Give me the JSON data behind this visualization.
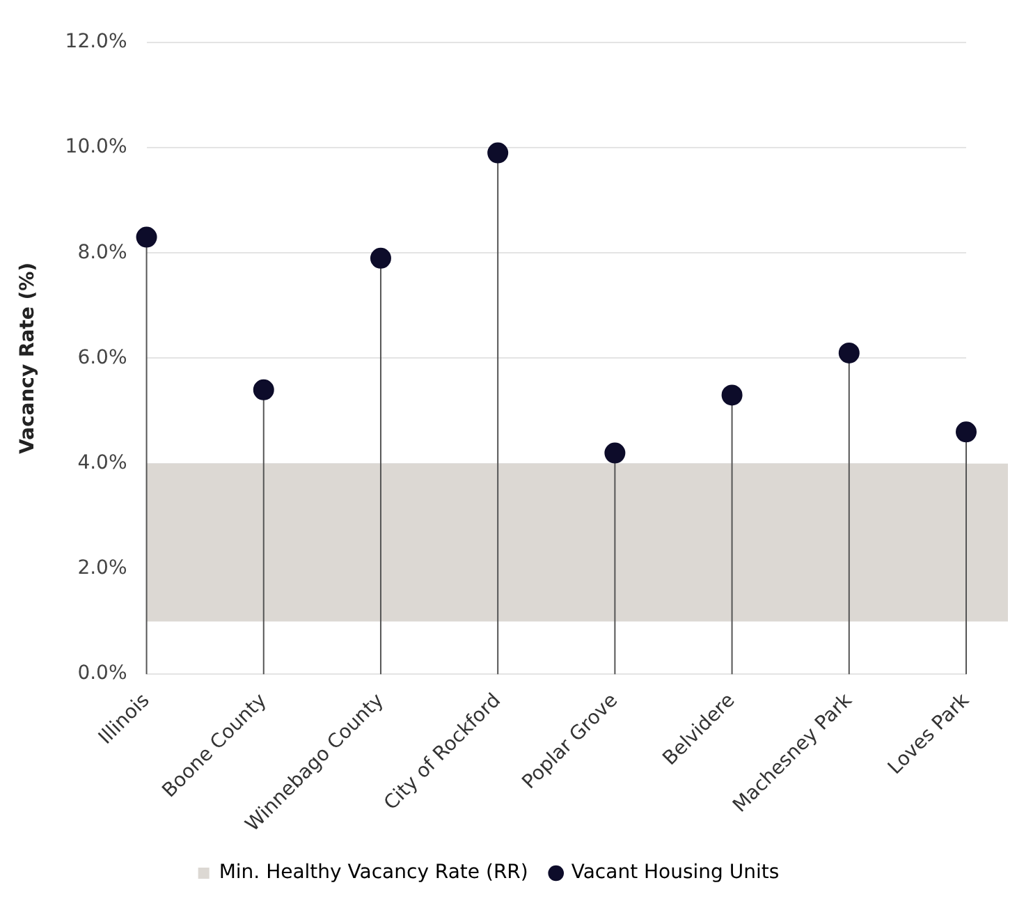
{
  "chart_data": {
    "type": "lollipop",
    "ylabel": "Vacancy Rate (%)",
    "categories": [
      "Illinois",
      "Boone County",
      "Winnebago County",
      "City of Rockford",
      "Poplar Grove",
      "Belvidere",
      "Machesney Park",
      "Loves Park"
    ],
    "series": [
      {
        "name": "Vacant Housing Units",
        "color": "#0d0c2a",
        "values": [
          8.3,
          5.4,
          7.9,
          9.9,
          4.2,
          5.3,
          6.1,
          4.6
        ]
      }
    ],
    "ylim": [
      0,
      12
    ],
    "yticks": [
      {
        "value": 0,
        "label": "0.0%"
      },
      {
        "value": 2,
        "label": "2.0%"
      },
      {
        "value": 4,
        "label": "4.0%"
      },
      {
        "value": 6,
        "label": "6.0%"
      },
      {
        "value": 8,
        "label": "8.0%"
      },
      {
        "value": 10,
        "label": "10.0%"
      },
      {
        "value": 12,
        "label": "12.0%"
      }
    ],
    "bands": [
      {
        "axis": "y",
        "from": 1,
        "to": 4,
        "label": "Min. Healthy Vacancy Rate (RR)",
        "color": "#dcd8d3"
      }
    ],
    "grid": "y",
    "legend": "bottom",
    "marker": "circle"
  }
}
